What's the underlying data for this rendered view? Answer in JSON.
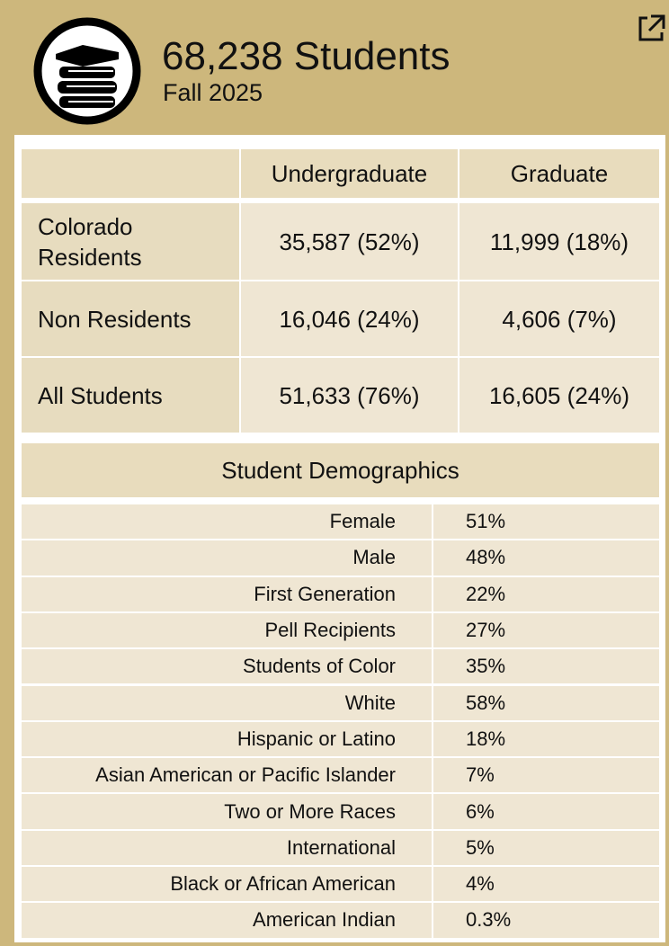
{
  "header": {
    "title": "68,238 Students",
    "subtitle": "Fall 2025"
  },
  "enrollment": {
    "columns": [
      "Undergraduate",
      "Graduate"
    ],
    "rows": [
      {
        "label": "Colorado Residents",
        "cells": [
          "35,587 (52%)",
          "11,999 (18%)"
        ]
      },
      {
        "label": "Non Residents",
        "cells": [
          "16,046 (24%)",
          "4,606 (7%)"
        ]
      },
      {
        "label": "All Students",
        "cells": [
          "51,633 (76%)",
          "16,605 (24%)"
        ]
      }
    ]
  },
  "demographics": {
    "title": "Student Demographics",
    "rows": [
      {
        "label": "Female",
        "value": "51%"
      },
      {
        "label": "Male",
        "value": "48%"
      },
      {
        "label": "First Generation",
        "value": "22%"
      },
      {
        "label": "Pell Recipients",
        "value": "27%"
      },
      {
        "label": "Students of Color",
        "value": "35%"
      },
      {
        "label": "White",
        "value": "58%"
      },
      {
        "label": "Hispanic or Latino",
        "value": "18%"
      },
      {
        "label": "Asian American or Pacific Islander",
        "value": "7%"
      },
      {
        "label": "Two or More Races",
        "value": "6%"
      },
      {
        "label": "International",
        "value": "5%"
      },
      {
        "label": "Black or African American",
        "value": "4%"
      },
      {
        "label": "American Indian",
        "value": "0.3%"
      }
    ]
  }
}
